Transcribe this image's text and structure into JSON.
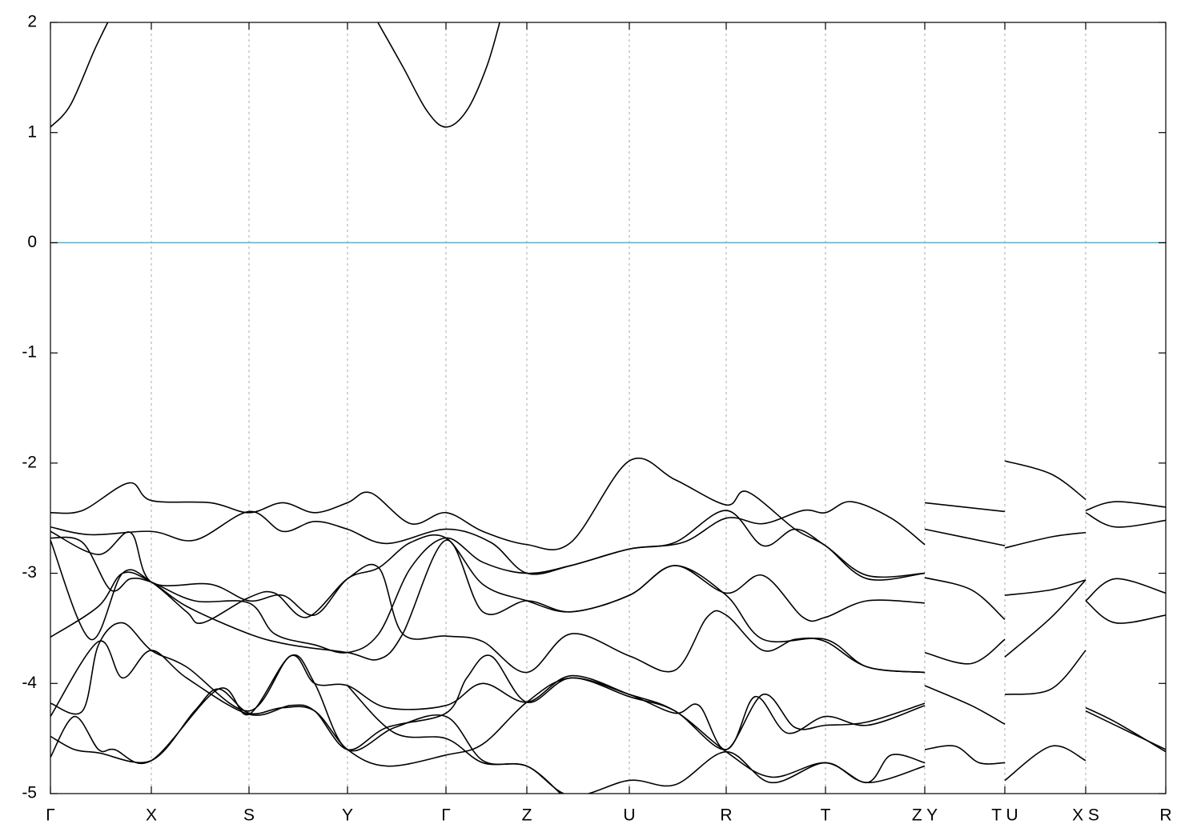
{
  "chart_data": {
    "type": "line",
    "xlim": [
      0,
      13.93
    ],
    "ylim": [
      -5,
      2
    ],
    "yticks": [
      2,
      1,
      0,
      -1,
      -2,
      -3,
      -4,
      -5
    ],
    "xticks": [
      {
        "value": 0,
        "label": "Γ"
      },
      {
        "value": 1.26,
        "label": "X"
      },
      {
        "value": 2.48,
        "label": "S"
      },
      {
        "value": 3.71,
        "label": "Y"
      },
      {
        "value": 4.94,
        "label": "Γ"
      },
      {
        "value": 5.95,
        "label": "Z"
      },
      {
        "value": 7.23,
        "label": "U"
      },
      {
        "value": 8.44,
        "label": "R"
      },
      {
        "value": 9.68,
        "label": "T"
      },
      {
        "value": 10.92,
        "label": "Z Y"
      },
      {
        "value": 11.92,
        "label": "T U"
      },
      {
        "value": 12.93,
        "label": "X S"
      },
      {
        "value": 13.93,
        "label": "R"
      }
    ],
    "xgrid": true,
    "hline": 0,
    "hline_color": "#5aaec8",
    "series": [
      {
        "color": "#000000",
        "x": [
          0,
          0.25,
          0.55,
          0.75,
          null,
          4.05,
          4.4,
          4.7,
          4.94,
          5.2,
          5.45,
          5.63
        ],
        "values": [
          1.05,
          1.25,
          1.75,
          2.05,
          null,
          2.05,
          1.6,
          1.2,
          1.05,
          1.2,
          1.6,
          2.05
        ]
      },
      {
        "color": "#000000",
        "x": [
          0,
          0.4,
          0.98,
          1.26,
          2.0,
          2.48,
          2.9,
          3.3,
          3.71,
          4.0,
          4.5,
          4.94,
          5.4,
          5.95,
          6.5,
          7.23,
          7.8,
          8.44,
          8.7,
          9.3,
          9.68,
          10.2,
          10.92,
          null,
          10.92,
          11.92,
          null,
          11.92,
          12.5,
          12.93,
          null,
          12.93,
          13.3,
          13.93
        ],
        "values": [
          -2.45,
          -2.43,
          -2.18,
          -2.34,
          -2.36,
          -2.45,
          -2.36,
          -2.45,
          -2.36,
          -2.27,
          -2.55,
          -2.45,
          -2.62,
          -2.74,
          -2.72,
          -1.98,
          -2.15,
          -2.38,
          -2.26,
          -2.6,
          -2.75,
          -3.05,
          -3.0,
          null,
          -2.36,
          -2.44,
          null,
          -1.98,
          -2.1,
          -2.33,
          null,
          -2.43,
          -2.35,
          -2.4
        ]
      },
      {
        "color": "#000000",
        "x": [
          0,
          0.5,
          1.26,
          1.8,
          2.48,
          2.9,
          3.3,
          3.71,
          4.2,
          4.94,
          5.5,
          5.95,
          6.5,
          7.23,
          7.9,
          8.44,
          8.9,
          9.4,
          9.68,
          10.0,
          10.5,
          10.92,
          null,
          10.92,
          11.92,
          null,
          11.92,
          12.5,
          12.93,
          null,
          12.93,
          13.3,
          13.93
        ],
        "values": [
          -2.58,
          -2.65,
          -2.62,
          -2.7,
          -2.44,
          -2.62,
          -2.53,
          -2.6,
          -2.73,
          -2.6,
          -2.72,
          -3.0,
          -2.93,
          -2.78,
          -2.72,
          -2.5,
          -2.55,
          -2.43,
          -2.45,
          -2.35,
          -2.5,
          -2.74,
          null,
          -2.6,
          -2.75,
          null,
          -2.77,
          -2.67,
          -2.63,
          null,
          -2.45,
          -2.58,
          -2.52
        ]
      },
      {
        "color": "#000000",
        "x": [
          0,
          0.6,
          1.0,
          1.26,
          2.0,
          2.48,
          2.9,
          3.3,
          3.71,
          4.1,
          4.5,
          4.94,
          5.4,
          5.95,
          6.5,
          7.23,
          7.8,
          8.44,
          8.9,
          9.4,
          9.68,
          10.2,
          10.92,
          null,
          10.92,
          11.5,
          11.92,
          null,
          11.92,
          12.5,
          12.93,
          null,
          12.93,
          13.3,
          13.93
        ],
        "values": [
          -2.62,
          -2.83,
          -2.63,
          -3.08,
          -3.1,
          -3.25,
          -3.2,
          -3.38,
          -3.05,
          -2.95,
          -2.72,
          -2.68,
          -3.1,
          -3.25,
          -3.35,
          -3.2,
          -2.93,
          -3.18,
          -3.02,
          -3.4,
          -3.4,
          -3.25,
          -3.27,
          null,
          -3.04,
          -3.15,
          -3.42,
          null,
          -3.2,
          -3.15,
          -3.06,
          null,
          -3.25,
          -3.05,
          -3.18
        ]
      },
      {
        "color": "#000000",
        "x": [
          0,
          0.4,
          0.75,
          1.0,
          1.26,
          1.8,
          2.48,
          2.8,
          3.3,
          3.71,
          4.1,
          4.5,
          4.94,
          5.4,
          5.95,
          6.5,
          7.23,
          7.8,
          8.44,
          8.9,
          9.3,
          9.68,
          10.2,
          10.92
        ],
        "values": [
          -2.68,
          -2.72,
          -3.15,
          -3.05,
          -3.08,
          -3.25,
          -3.27,
          -3.55,
          -3.65,
          -3.72,
          -3.55,
          -2.95,
          -2.68,
          -2.9,
          -3.0,
          -2.93,
          -2.78,
          -2.72,
          -2.43,
          -2.75,
          -2.6,
          -2.75,
          -3.02,
          -3.0
        ]
      },
      {
        "color": "#000000",
        "x": [
          0,
          0.5,
          0.9,
          1.26,
          1.7,
          1.9,
          2.48,
          2.8,
          3.2,
          3.71,
          4.1,
          4.4,
          4.94,
          5.4,
          5.95,
          6.5,
          7.23,
          7.8,
          8.2,
          8.44,
          8.9,
          9.3,
          9.68,
          10.2,
          10.92,
          null,
          10.92,
          11.5,
          11.92,
          null,
          11.92,
          12.5,
          12.93
        ],
        "values": [
          -2.7,
          -3.6,
          -3.0,
          -3.08,
          -3.35,
          -3.45,
          -3.22,
          -3.18,
          -3.4,
          -3.05,
          -2.95,
          -3.55,
          -3.57,
          -3.62,
          -3.9,
          -3.55,
          -3.75,
          -3.88,
          -3.4,
          -3.38,
          -3.7,
          -3.6,
          -3.62,
          -3.85,
          -3.9,
          null,
          -3.72,
          -3.82,
          -3.6,
          null,
          -3.76,
          -3.4,
          -3.06
        ]
      },
      {
        "color": "#000000",
        "x": [
          0,
          0.6,
          0.9,
          1.26,
          1.7,
          2.48,
          3.0,
          3.71,
          4.1,
          4.4,
          4.94,
          5.4,
          5.95,
          6.5,
          7.23,
          7.8,
          8.44,
          8.9,
          9.68,
          10.2,
          10.92,
          null,
          12.93,
          13.3,
          13.93
        ],
        "values": [
          -3.58,
          -3.3,
          -3.0,
          -3.08,
          -3.3,
          -3.55,
          -3.65,
          -3.72,
          -3.78,
          -3.55,
          -2.7,
          -3.35,
          -3.25,
          -3.35,
          -3.2,
          -2.93,
          -3.2,
          -3.6,
          -3.6,
          -3.85,
          -3.9,
          null,
          -3.25,
          -3.45,
          -3.38
        ]
      },
      {
        "color": "#000000",
        "x": [
          0,
          0.4,
          0.6,
          0.9,
          1.26,
          1.7,
          2.48,
          3.0,
          3.3,
          3.71,
          4.2,
          4.94,
          5.4,
          5.95,
          6.5,
          7.23,
          7.8,
          8.1,
          8.44,
          8.9,
          9.3,
          9.68,
          10.2,
          10.92,
          null,
          10.92,
          11.5,
          11.92,
          null,
          11.92,
          12.5,
          12.93,
          null,
          12.93,
          13.3,
          13.93
        ],
        "values": [
          -4.18,
          -4.25,
          -3.65,
          -3.45,
          -3.7,
          -3.85,
          -4.25,
          -3.75,
          -4.0,
          -4.02,
          -4.22,
          -4.2,
          -4.0,
          -4.17,
          -3.93,
          -4.1,
          -4.27,
          -4.2,
          -4.6,
          -4.1,
          -4.4,
          -4.38,
          -4.35,
          -4.18,
          null,
          -4.02,
          -4.2,
          -4.37,
          null,
          -4.1,
          -4.05,
          -3.7,
          null,
          -4.22,
          -4.35,
          -4.62
        ]
      },
      {
        "color": "#000000",
        "x": [
          0,
          0.6,
          0.9,
          1.26,
          1.7,
          2.48,
          3.0,
          3.3,
          3.71,
          4.2,
          4.94,
          5.2,
          5.5,
          5.95,
          6.5,
          7.23,
          7.8,
          8.44,
          8.8,
          9.2,
          9.68,
          10.2,
          10.92
        ],
        "values": [
          -4.3,
          -3.62,
          -3.95,
          -3.7,
          -3.95,
          -4.28,
          -4.2,
          -4.25,
          -4.6,
          -4.4,
          -4.27,
          -3.95,
          -3.75,
          -4.17,
          -3.95,
          -4.12,
          -4.25,
          -4.6,
          -4.12,
          -4.45,
          -4.3,
          -4.38,
          -4.2
        ]
      },
      {
        "color": "#000000",
        "x": [
          0,
          0.3,
          0.6,
          1.26,
          1.8,
          2.1,
          2.48,
          2.9,
          3.3,
          3.71,
          4.2,
          4.94,
          5.4,
          5.95,
          6.5,
          7.23,
          7.8,
          8.44,
          9.0,
          9.68,
          10.2,
          10.5,
          10.92,
          null,
          10.92,
          11.3,
          11.6,
          11.92,
          null,
          11.92,
          12.5,
          12.93,
          null,
          12.93,
          13.5,
          13.93
        ],
        "values": [
          -4.48,
          -4.6,
          -4.63,
          -4.7,
          -4.25,
          -4.05,
          -4.27,
          -4.22,
          -4.25,
          -4.6,
          -4.75,
          -4.65,
          -4.55,
          -4.17,
          -3.95,
          -4.1,
          -4.25,
          -4.62,
          -4.85,
          -4.72,
          -4.9,
          -4.65,
          -4.72,
          null,
          -4.6,
          -4.57,
          -4.72,
          -4.72,
          null,
          -4.88,
          -4.57,
          -4.7,
          null,
          -4.25,
          -4.45,
          -4.6
        ]
      },
      {
        "color": "#000000",
        "x": [
          0,
          0.3,
          0.6,
          0.8,
          1.26,
          2.1,
          2.48,
          3.0,
          3.3,
          3.71,
          4.3,
          4.94,
          5.4,
          5.95,
          6.5,
          7.23,
          7.8,
          8.44,
          9.0,
          9.68,
          10.2,
          10.92
        ],
        "values": [
          -4.67,
          -4.3,
          -4.6,
          -4.6,
          -4.7,
          -4.05,
          -4.28,
          -3.75,
          -4.0,
          -4.6,
          -4.4,
          -4.3,
          -4.7,
          -4.75,
          -5.02,
          -4.88,
          -4.92,
          -4.62,
          -4.9,
          -4.72,
          -4.9,
          -4.75
        ]
      },
      {
        "color": "#000000",
        "x": [
          3.71,
          4.3,
          4.94,
          5.4,
          5.95,
          6.4
        ],
        "values": [
          -4.02,
          -4.45,
          -4.5,
          -4.72,
          -4.75,
          -5.02
        ]
      }
    ]
  }
}
